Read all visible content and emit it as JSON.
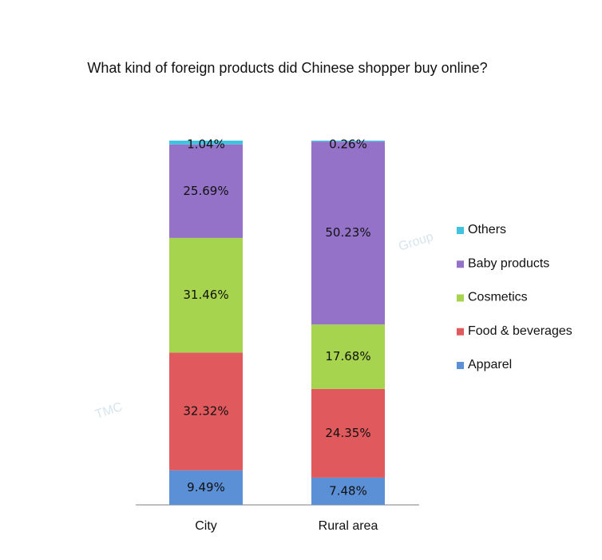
{
  "chart_data": {
    "type": "stacked_bar",
    "title": "What kind of foreign products did Chinese shopper buy online?",
    "watermark": [
      "TMC",
      "Group"
    ],
    "categories": [
      "City",
      "Rural area"
    ],
    "series": [
      {
        "name": "Apparel",
        "color": "#5b8fd6",
        "values": [
          9.49,
          7.48
        ],
        "value_labels": [
          "9.49%",
          "7.48%"
        ]
      },
      {
        "name": "Food & beverages",
        "color": "#e0595c",
        "values": [
          32.32,
          24.35
        ],
        "value_labels": [
          "32.32%",
          "24.35%"
        ]
      },
      {
        "name": "Cosmetics",
        "color": "#a6d44e",
        "values": [
          31.46,
          17.68
        ],
        "value_labels": [
          "31.46%",
          "17.68%"
        ]
      },
      {
        "name": "Baby products",
        "color": "#9372c8",
        "values": [
          25.69,
          50.23
        ],
        "value_labels": [
          "25.69%",
          "50.23%"
        ]
      },
      {
        "name": "Others",
        "color": "#41c3e0",
        "values": [
          1.04,
          0.26
        ],
        "value_labels": [
          "1.04%",
          "0.26%"
        ]
      }
    ],
    "legend": "right"
  }
}
